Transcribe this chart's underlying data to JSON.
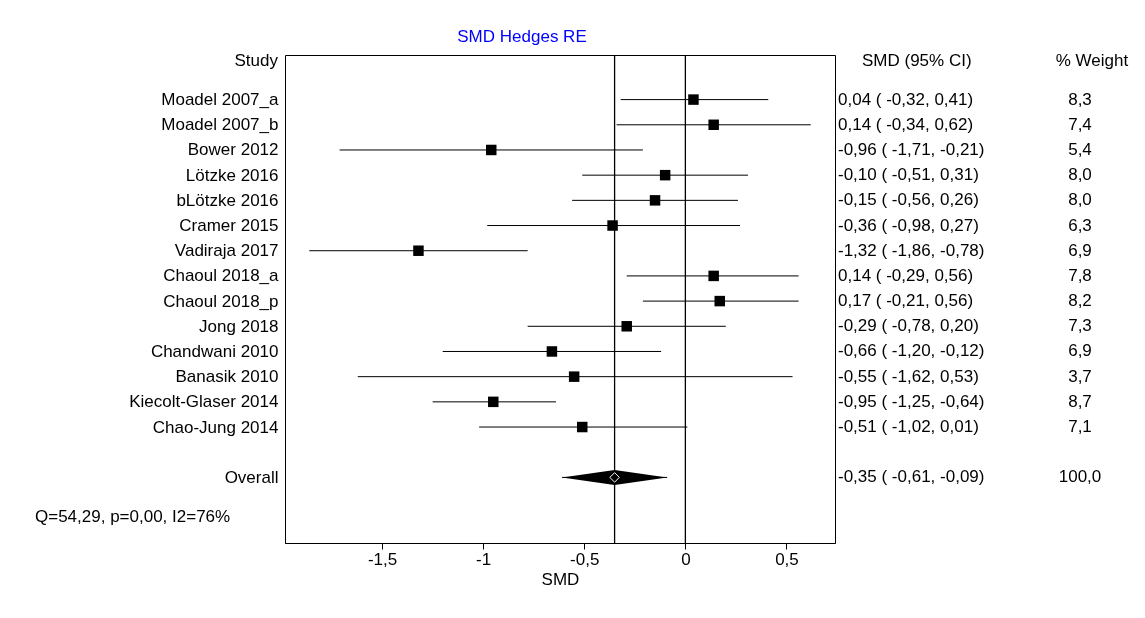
{
  "chart_data": {
    "type": "scatter",
    "orientation": "horizontal",
    "title": "SMD Hedges RE",
    "xlabel": "SMD",
    "ylabel": "Study",
    "categories": [
      "Moadel 2007_a",
      "Moadel 2007_b",
      "Bower 2012",
      "Lötzke 2016",
      "bLötzke 2016",
      "Cramer 2015",
      "Vadiraja 2017",
      "Chaoul 2018_a",
      "Chaoul 2018_p",
      "Jong 2018",
      "Chandwani 2010",
      "Banasik 2010",
      "Kiecolt-Glaser 2014",
      "Chao-Jung  2014",
      null,
      "Overall"
    ],
    "series": [
      {
        "color": "#000000",
        "marker": "square",
        "values": [
          0.04,
          0.14,
          -0.96,
          -0.1,
          -0.15,
          -0.36,
          -1.32,
          0.14,
          0.17,
          -0.29,
          -0.66,
          -0.55,
          -0.95,
          -0.51,
          null,
          null
        ],
        "errors": [
          [
            -0.32,
            0.41
          ],
          [
            -0.34,
            0.62
          ],
          [
            -1.71,
            -0.21
          ],
          [
            -0.51,
            0.31
          ],
          [
            -0.56,
            0.26
          ],
          [
            -0.98,
            0.27
          ],
          [
            -1.86,
            -0.78
          ],
          [
            -0.29,
            0.56
          ],
          [
            -0.21,
            0.56
          ],
          [
            -0.78,
            0.2
          ],
          [
            -1.2,
            -0.12
          ],
          [
            -1.62,
            0.53
          ],
          [
            -1.25,
            -0.64
          ],
          [
            -1.02,
            0.01
          ],
          null,
          null
        ],
        "value_labels": [
          "0,04  ( -0,32,  0,41)",
          "0,14  ( -0,34,  0,62)",
          "-0,96  ( -1,71, -0,21)",
          "-0,10  ( -0,51,  0,31)",
          "-0,15  ( -0,56,  0,26)",
          "-0,36  ( -0,98,  0,27)",
          "-1,32  ( -1,86, -0,78)",
          "0,14  ( -0,29,  0,56)",
          "0,17  ( -0,21,  0,56)",
          "-0,29  ( -0,78,  0,20)",
          "-0,66  ( -1,20, -0,12)",
          "-0,55  ( -1,62,  0,53)",
          "-0,95  ( -1,25, -0,64)",
          "-0,51  ( -1,02,  0,01)",
          null,
          null
        ]
      },
      {
        "color": "#000000",
        "marker": "diamond",
        "values": [
          null,
          null,
          null,
          null,
          null,
          null,
          null,
          null,
          null,
          null,
          null,
          null,
          null,
          null,
          null,
          -0.35
        ],
        "errors": [
          null,
          null,
          null,
          null,
          null,
          null,
          null,
          null,
          null,
          null,
          null,
          null,
          null,
          null,
          null,
          [
            -0.61,
            -0.09
          ]
        ]
      }
    ],
    "xlim": [
      -1.98,
      0.74
    ],
    "xticks": [
      {
        "value": -1.5,
        "label": "-1,5"
      },
      {
        "value": -1,
        "label": "-1"
      },
      {
        "value": -0.5,
        "label": "-0,5"
      },
      0,
      {
        "value": 0.5,
        "label": "0,5"
      }
    ],
    "ref_lines": [
      {
        "axis": "x",
        "value": 0,
        "color": "#000000"
      },
      {
        "axis": "x",
        "value": -0.35,
        "color": "#000000"
      }
    ],
    "annotations": [
      "SMD (95% CI)",
      "% Weight",
      "Q=54,29, p=0,00, I2=76%",
      "-0,35  ( -0,61, -0,09)",
      "8,3",
      "7,4",
      "5,4",
      "8,0",
      "8,0",
      "6,3",
      "6,9",
      "7,8",
      "8,2",
      "7,3",
      "6,9",
      "3,7",
      "8,7",
      "7,1",
      "100,0"
    ],
    "grid": false
  }
}
